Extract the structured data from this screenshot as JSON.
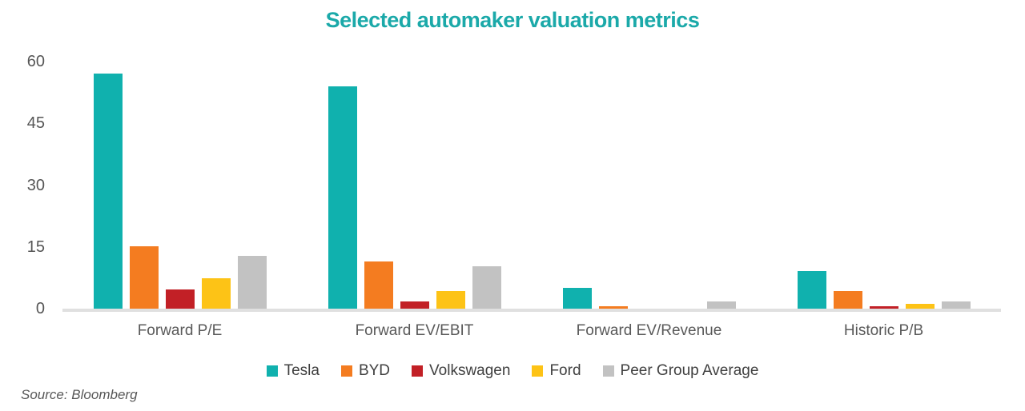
{
  "title": "Selected automaker valuation metrics",
  "source": "Source: Bloomberg",
  "colors": {
    "title_teal": "#1ba9a9",
    "axis_line": "#e0e0e0",
    "tick_text": "#565656",
    "category_text": "#595959",
    "legend_text": "#404040"
  },
  "chart_data": {
    "type": "bar",
    "title": "Selected automaker valuation metrics",
    "xlabel": "",
    "ylabel": "",
    "categories": [
      "Forward P/E",
      "Forward EV/EBIT",
      "Forward EV/Revenue",
      "Historic P/B"
    ],
    "series": [
      {
        "name": "Tesla",
        "color": "#10b1ae",
        "values": [
          57.0,
          54.0,
          5.0,
          9.2
        ]
      },
      {
        "name": "BYD",
        "color": "#f47c20",
        "values": [
          15.2,
          11.5,
          0.6,
          4.3
        ]
      },
      {
        "name": "Volkswagen",
        "color": "#c22026",
        "values": [
          4.7,
          1.8,
          0.1,
          0.5
        ]
      },
      {
        "name": "Ford",
        "color": "#fdc316",
        "values": [
          7.3,
          4.2,
          0.1,
          1.1
        ]
      },
      {
        "name": "Peer Group Average",
        "color": "#c2c2c2",
        "values": [
          12.8,
          10.3,
          1.8,
          1.8
        ]
      }
    ],
    "ylim": [
      0,
      60
    ],
    "yticks": [
      0,
      15,
      30,
      45,
      60
    ],
    "grid": false,
    "legend_position": "bottom"
  }
}
